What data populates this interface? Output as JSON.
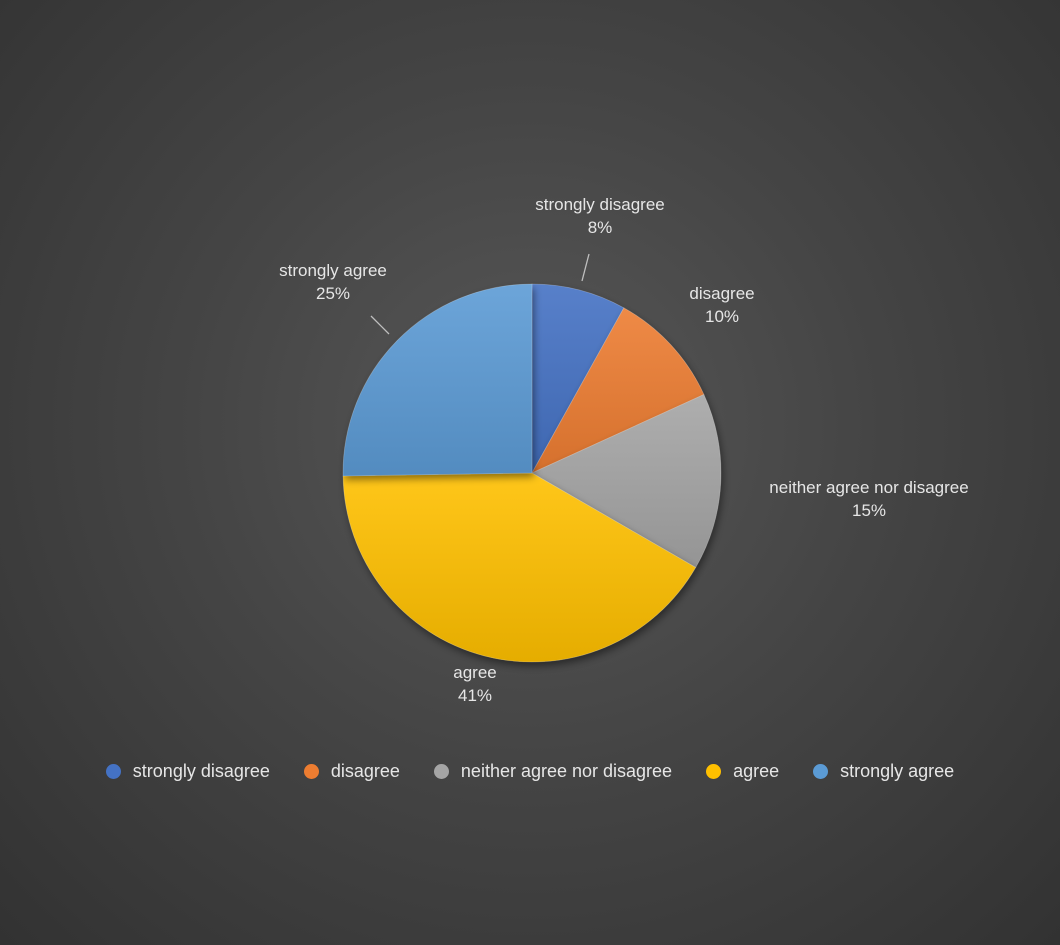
{
  "chart_data": {
    "type": "pie",
    "title": "",
    "categories": [
      "strongly disagree",
      "disagree",
      "neither agree nor disagree",
      "agree",
      "strongly agree"
    ],
    "values": [
      8,
      10,
      15,
      41,
      25
    ],
    "percent_labels": [
      "8%",
      "10%",
      "15%",
      "41%",
      "25%"
    ],
    "colors": [
      "#4472C4",
      "#ED7D31",
      "#A5A5A5",
      "#FFC000",
      "#5B9BD5"
    ],
    "legend_position": "bottom",
    "start_angle_deg": 0,
    "direction": "clockwise"
  }
}
